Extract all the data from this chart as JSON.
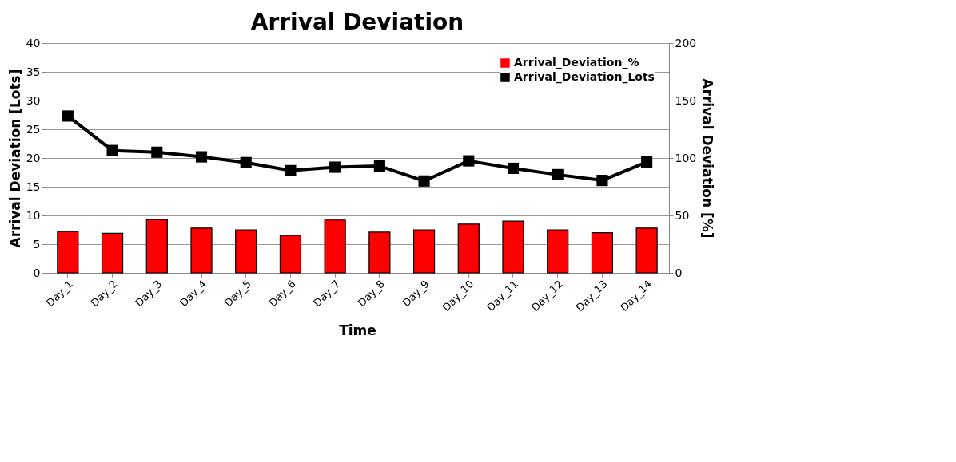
{
  "chart_data": {
    "type": "bar",
    "title": "Arrival Deviation",
    "xlabel": "Time",
    "ylabel": "Arrival Deviation [Lots]",
    "y2label": "Arrival Deviation [%]",
    "categories": [
      "Day_1",
      "Day_2",
      "Day_3",
      "Day_4",
      "Day_5",
      "Day_6",
      "Day_7",
      "Day_8",
      "Day_9",
      "Day_10",
      "Day_11",
      "Day_12",
      "Day_13",
      "Day_14"
    ],
    "series": [
      {
        "name": "Arrival_Deviation_%",
        "axis": "y2",
        "color": "#ff0000",
        "values": [
          36,
          34.5,
          46.5,
          39,
          37.5,
          32.5,
          46,
          35.5,
          37.5,
          42.5,
          45,
          37.5,
          35,
          39
        ]
      },
      {
        "name": "Arrival_Deviation_Lots",
        "type": "line",
        "color": "#000000",
        "marker": "square",
        "values": [
          27.3,
          21.3,
          21.0,
          20.2,
          19.2,
          17.8,
          18.4,
          18.6,
          16.0,
          19.5,
          18.2,
          17.1,
          16.1,
          19.3
        ]
      }
    ],
    "ylim": [
      0,
      40
    ],
    "yticks": [
      0,
      5,
      10,
      15,
      20,
      25,
      30,
      35,
      40
    ],
    "y2lim": [
      0,
      200
    ],
    "y2ticks": [
      0,
      50,
      100,
      150,
      200
    ],
    "grid": "y",
    "legend": "top right"
  }
}
